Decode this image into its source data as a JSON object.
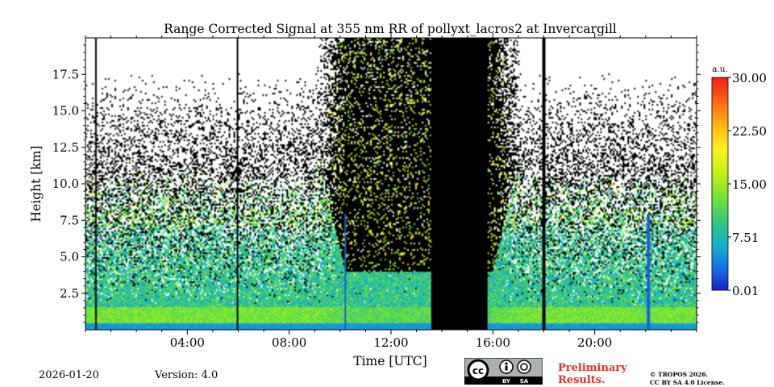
{
  "chart_data": {
    "type": "heatmap",
    "title": "Range Corrected Signal at 355 nm RR of pollyxt_lacros2 at Invercargill",
    "xlabel": "Time [UTC]",
    "ylabel": "Height [km]",
    "xlim_hours": [
      0,
      24
    ],
    "ylim_km": [
      0,
      20
    ],
    "x_tick_labels": [
      "04:00",
      "08:00",
      "12:00",
      "16:00",
      "20:00"
    ],
    "x_tick_hours": [
      4,
      8,
      12,
      16,
      20
    ],
    "y_tick_labels": [
      "2.5",
      "5.0",
      "7.5",
      "10.0",
      "12.5",
      "15.0",
      "17.5"
    ],
    "y_tick_values": [
      2.5,
      5.0,
      7.5,
      10.0,
      12.5,
      15.0,
      17.5
    ],
    "colorbar": {
      "unit": "a.u.",
      "min": 0.01,
      "max": 30.0,
      "tick_labels": [
        "30.00",
        "22.50",
        "15.00",
        "7.51",
        "0.01"
      ],
      "tick_values": [
        30.0,
        22.5,
        15.0,
        7.51,
        0.01
      ],
      "colors": [
        "#1a1ec8",
        "#1478e6",
        "#14b4c8",
        "#3cc878",
        "#78e632",
        "#c8f014",
        "#fff01e",
        "#ffb414",
        "#ff6414",
        "#f01e14"
      ]
    },
    "no_data_intervals_hours": [
      [
        13.6,
        15.8
      ]
    ],
    "dark_band_hours": [
      9.0,
      17.2
    ],
    "vertical_gap_lines_hours": [
      0.4,
      5.95,
      18.0
    ],
    "vertical_stripe_hours": [
      10.2,
      22.1
    ]
  },
  "footer": {
    "date": "2026-01-20",
    "version": "Version: 4.0",
    "preliminary_line1": "Preliminary",
    "preliminary_line2": "Results.",
    "copyright_line1": "© TROPOS 2026.",
    "copyright_line2": "CC BY SA 4.0 License.",
    "cc_badge": {
      "by": "BY",
      "sa": "SA"
    }
  }
}
